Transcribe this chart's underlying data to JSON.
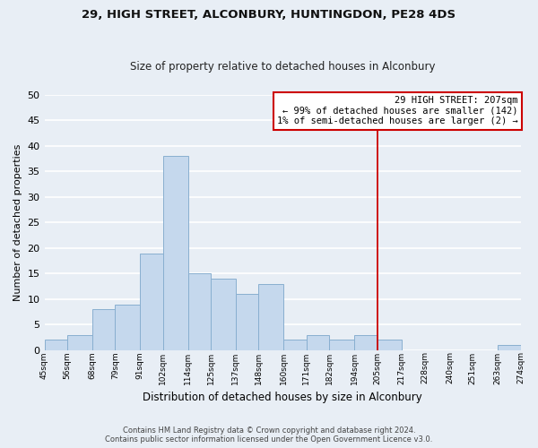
{
  "title": "29, HIGH STREET, ALCONBURY, HUNTINGDON, PE28 4DS",
  "subtitle": "Size of property relative to detached houses in Alconbury",
  "xlabel": "Distribution of detached houses by size in Alconbury",
  "ylabel": "Number of detached properties",
  "bar_color": "#c5d8ed",
  "bar_edge_color": "#89afd0",
  "background_color": "#e8eef5",
  "plot_bg_color": "#e8eef5",
  "grid_color": "#ffffff",
  "bin_edges": [
    45,
    56,
    68,
    79,
    91,
    102,
    114,
    125,
    137,
    148,
    160,
    171,
    182,
    194,
    205,
    217,
    228,
    240,
    251,
    263,
    274
  ],
  "bin_labels": [
    "45sqm",
    "56sqm",
    "68sqm",
    "79sqm",
    "91sqm",
    "102sqm",
    "114sqm",
    "125sqm",
    "137sqm",
    "148sqm",
    "160sqm",
    "171sqm",
    "182sqm",
    "194sqm",
    "205sqm",
    "217sqm",
    "228sqm",
    "240sqm",
    "251sqm",
    "263sqm",
    "274sqm"
  ],
  "counts": [
    2,
    3,
    8,
    9,
    19,
    38,
    15,
    14,
    11,
    13,
    2,
    3,
    2,
    3,
    2,
    0,
    0,
    0,
    0,
    1
  ],
  "ylim": [
    0,
    50
  ],
  "yticks": [
    0,
    5,
    10,
    15,
    20,
    25,
    30,
    35,
    40,
    45,
    50
  ],
  "vline_x": 205,
  "vline_color": "#cc0000",
  "annotation_title": "29 HIGH STREET: 207sqm",
  "annotation_line1": "← 99% of detached houses are smaller (142)",
  "annotation_line2": "1% of semi-detached houses are larger (2) →",
  "annotation_box_edge": "#cc0000",
  "footnote1": "Contains HM Land Registry data © Crown copyright and database right 2024.",
  "footnote2": "Contains public sector information licensed under the Open Government Licence v3.0."
}
